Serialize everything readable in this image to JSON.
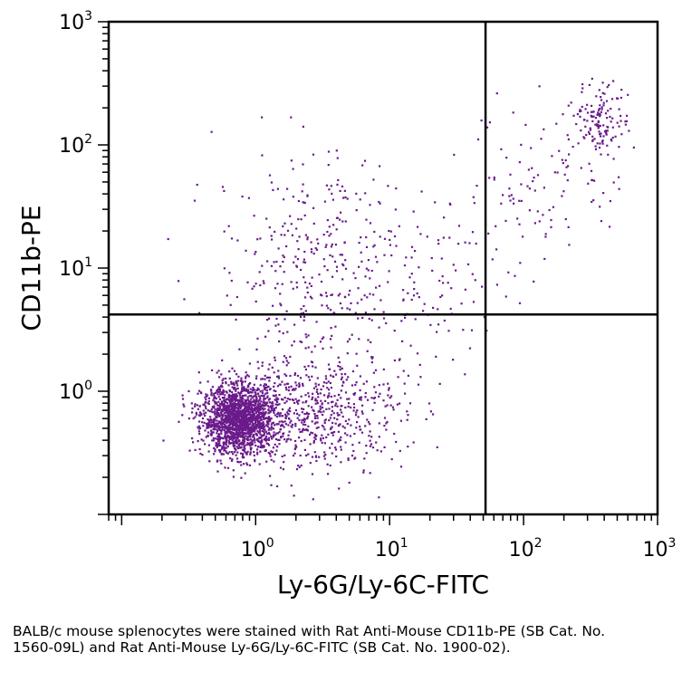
{
  "chart_data": {
    "type": "scatter",
    "xlabel": "Ly-6G/Ly-6C-FITC",
    "ylabel": "CD11b-PE",
    "x_scale": "log",
    "y_scale": "log",
    "xlim": [
      0.08,
      1000
    ],
    "ylim": [
      0.1,
      1000
    ],
    "x_ticks": [
      {
        "base": "10",
        "exp": "0",
        "value": 1
      },
      {
        "base": "10",
        "exp": "1",
        "value": 10
      },
      {
        "base": "10",
        "exp": "2",
        "value": 100
      },
      {
        "base": "10",
        "exp": "3",
        "value": 1000
      }
    ],
    "y_ticks": [
      {
        "base": "10",
        "exp": "0",
        "value": 1
      },
      {
        "base": "10",
        "exp": "1",
        "value": 10
      },
      {
        "base": "10",
        "exp": "2",
        "value": 100
      },
      {
        "base": "10",
        "exp": "3",
        "value": 1000
      }
    ],
    "quadrant_gates": {
      "x": 52,
      "y": 4.2
    },
    "point_color": "#6a1b8a",
    "populations": [
      {
        "center": [
          0.75,
          0.6
        ],
        "spread_log10": [
          0.14,
          0.14
        ],
        "count": 1700
      },
      {
        "center": [
          2.5,
          0.7
        ],
        "spread_log10": [
          0.35,
          0.25
        ],
        "count": 650
      },
      {
        "center": [
          2.5,
          12
        ],
        "spread_log10": [
          0.35,
          0.45
        ],
        "count": 280
      },
      {
        "center": [
          12,
          8
        ],
        "spread_log10": [
          0.4,
          0.3
        ],
        "count": 150
      },
      {
        "center": [
          140,
          55
        ],
        "spread_log10": [
          0.3,
          0.3
        ],
        "count": 110
      },
      {
        "center": [
          380,
          170
        ],
        "spread_log10": [
          0.1,
          0.14
        ],
        "count": 130
      }
    ],
    "grid": false,
    "legend": "none"
  },
  "caption": "BALB/c mouse splenocytes were stained with Rat Anti-Mouse CD11b-PE (SB Cat. No. 1560-09L) and Rat Anti-Mouse Ly-6G/Ly-6C-FITC (SB Cat. No. 1900-02)."
}
